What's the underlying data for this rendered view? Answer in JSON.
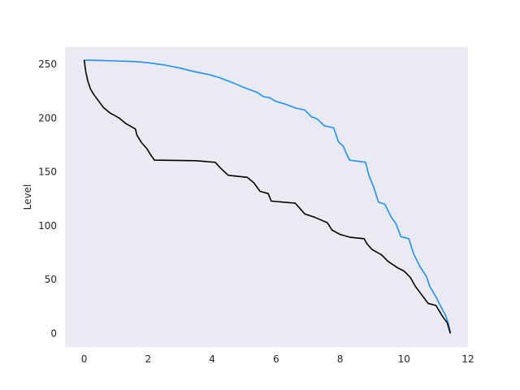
{
  "chart_data": {
    "type": "line",
    "title": "",
    "xlabel": "",
    "ylabel": "Level",
    "xlim": [
      -0.6,
      12.0
    ],
    "ylim": [
      -12.5,
      266
    ],
    "xticks": [
      "0",
      "2",
      "4",
      "6",
      "8",
      "10",
      "12"
    ],
    "yticks": [
      "0",
      "50",
      "100",
      "150",
      "200",
      "250"
    ],
    "grid": false,
    "background": "#eaeaf2",
    "series": [
      {
        "color": "#1e90ff",
        "points": [
          [
            0.0,
            254
          ],
          [
            0.5,
            253.6
          ],
          [
            1.0,
            253.2
          ],
          [
            1.6,
            252.6
          ],
          [
            2.0,
            251.5
          ],
          [
            2.5,
            249.5
          ],
          [
            3.0,
            246.5
          ],
          [
            3.4,
            243.5
          ],
          [
            3.9,
            240.5
          ],
          [
            4.2,
            238
          ],
          [
            4.6,
            233.5
          ],
          [
            5.0,
            228.5
          ],
          [
            5.4,
            224
          ],
          [
            5.6,
            220
          ],
          [
            5.8,
            219
          ],
          [
            6.0,
            215.5
          ],
          [
            6.3,
            213
          ],
          [
            6.6,
            209.5
          ],
          [
            6.9,
            207.5
          ],
          [
            7.1,
            201.5
          ],
          [
            7.3,
            199
          ],
          [
            7.5,
            193
          ],
          [
            7.8,
            191
          ],
          [
            7.95,
            178
          ],
          [
            8.1,
            174
          ],
          [
            8.2,
            167
          ],
          [
            8.3,
            161
          ],
          [
            8.8,
            159
          ],
          [
            8.9,
            147
          ],
          [
            9.05,
            136
          ],
          [
            9.2,
            122
          ],
          [
            9.4,
            120
          ],
          [
            9.6,
            108
          ],
          [
            9.75,
            102
          ],
          [
            9.9,
            90
          ],
          [
            10.15,
            88
          ],
          [
            10.3,
            74
          ],
          [
            10.5,
            62
          ],
          [
            10.7,
            53
          ],
          [
            10.8,
            44
          ],
          [
            11.0,
            34
          ],
          [
            11.15,
            25
          ],
          [
            11.3,
            17
          ],
          [
            11.38,
            10
          ],
          [
            11.45,
            1
          ]
        ]
      },
      {
        "color": "#000000",
        "points": [
          [
            0.0,
            254
          ],
          [
            0.05,
            243
          ],
          [
            0.12,
            234
          ],
          [
            0.2,
            227
          ],
          [
            0.3,
            222
          ],
          [
            0.45,
            216
          ],
          [
            0.6,
            210
          ],
          [
            0.8,
            205
          ],
          [
            1.1,
            200
          ],
          [
            1.3,
            195
          ],
          [
            1.6,
            190
          ],
          [
            1.65,
            184
          ],
          [
            1.8,
            177
          ],
          [
            1.95,
            172
          ],
          [
            2.1,
            165
          ],
          [
            2.2,
            161
          ],
          [
            3.5,
            160.5
          ],
          [
            4.1,
            159
          ],
          [
            4.25,
            154
          ],
          [
            4.5,
            147
          ],
          [
            5.1,
            145
          ],
          [
            5.3,
            140
          ],
          [
            5.5,
            132
          ],
          [
            5.75,
            130
          ],
          [
            5.85,
            123
          ],
          [
            6.6,
            121
          ],
          [
            6.75,
            116
          ],
          [
            6.9,
            111
          ],
          [
            7.2,
            108
          ],
          [
            7.6,
            103
          ],
          [
            7.75,
            96
          ],
          [
            8.0,
            92
          ],
          [
            8.3,
            89.5
          ],
          [
            8.75,
            88
          ],
          [
            8.85,
            83
          ],
          [
            9.0,
            78
          ],
          [
            9.3,
            73
          ],
          [
            9.5,
            67
          ],
          [
            9.8,
            61
          ],
          [
            10.0,
            58
          ],
          [
            10.2,
            52
          ],
          [
            10.35,
            44
          ],
          [
            10.55,
            36
          ],
          [
            10.75,
            28
          ],
          [
            11.0,
            26
          ],
          [
            11.2,
            16
          ],
          [
            11.35,
            10
          ],
          [
            11.45,
            0
          ]
        ]
      }
    ]
  }
}
